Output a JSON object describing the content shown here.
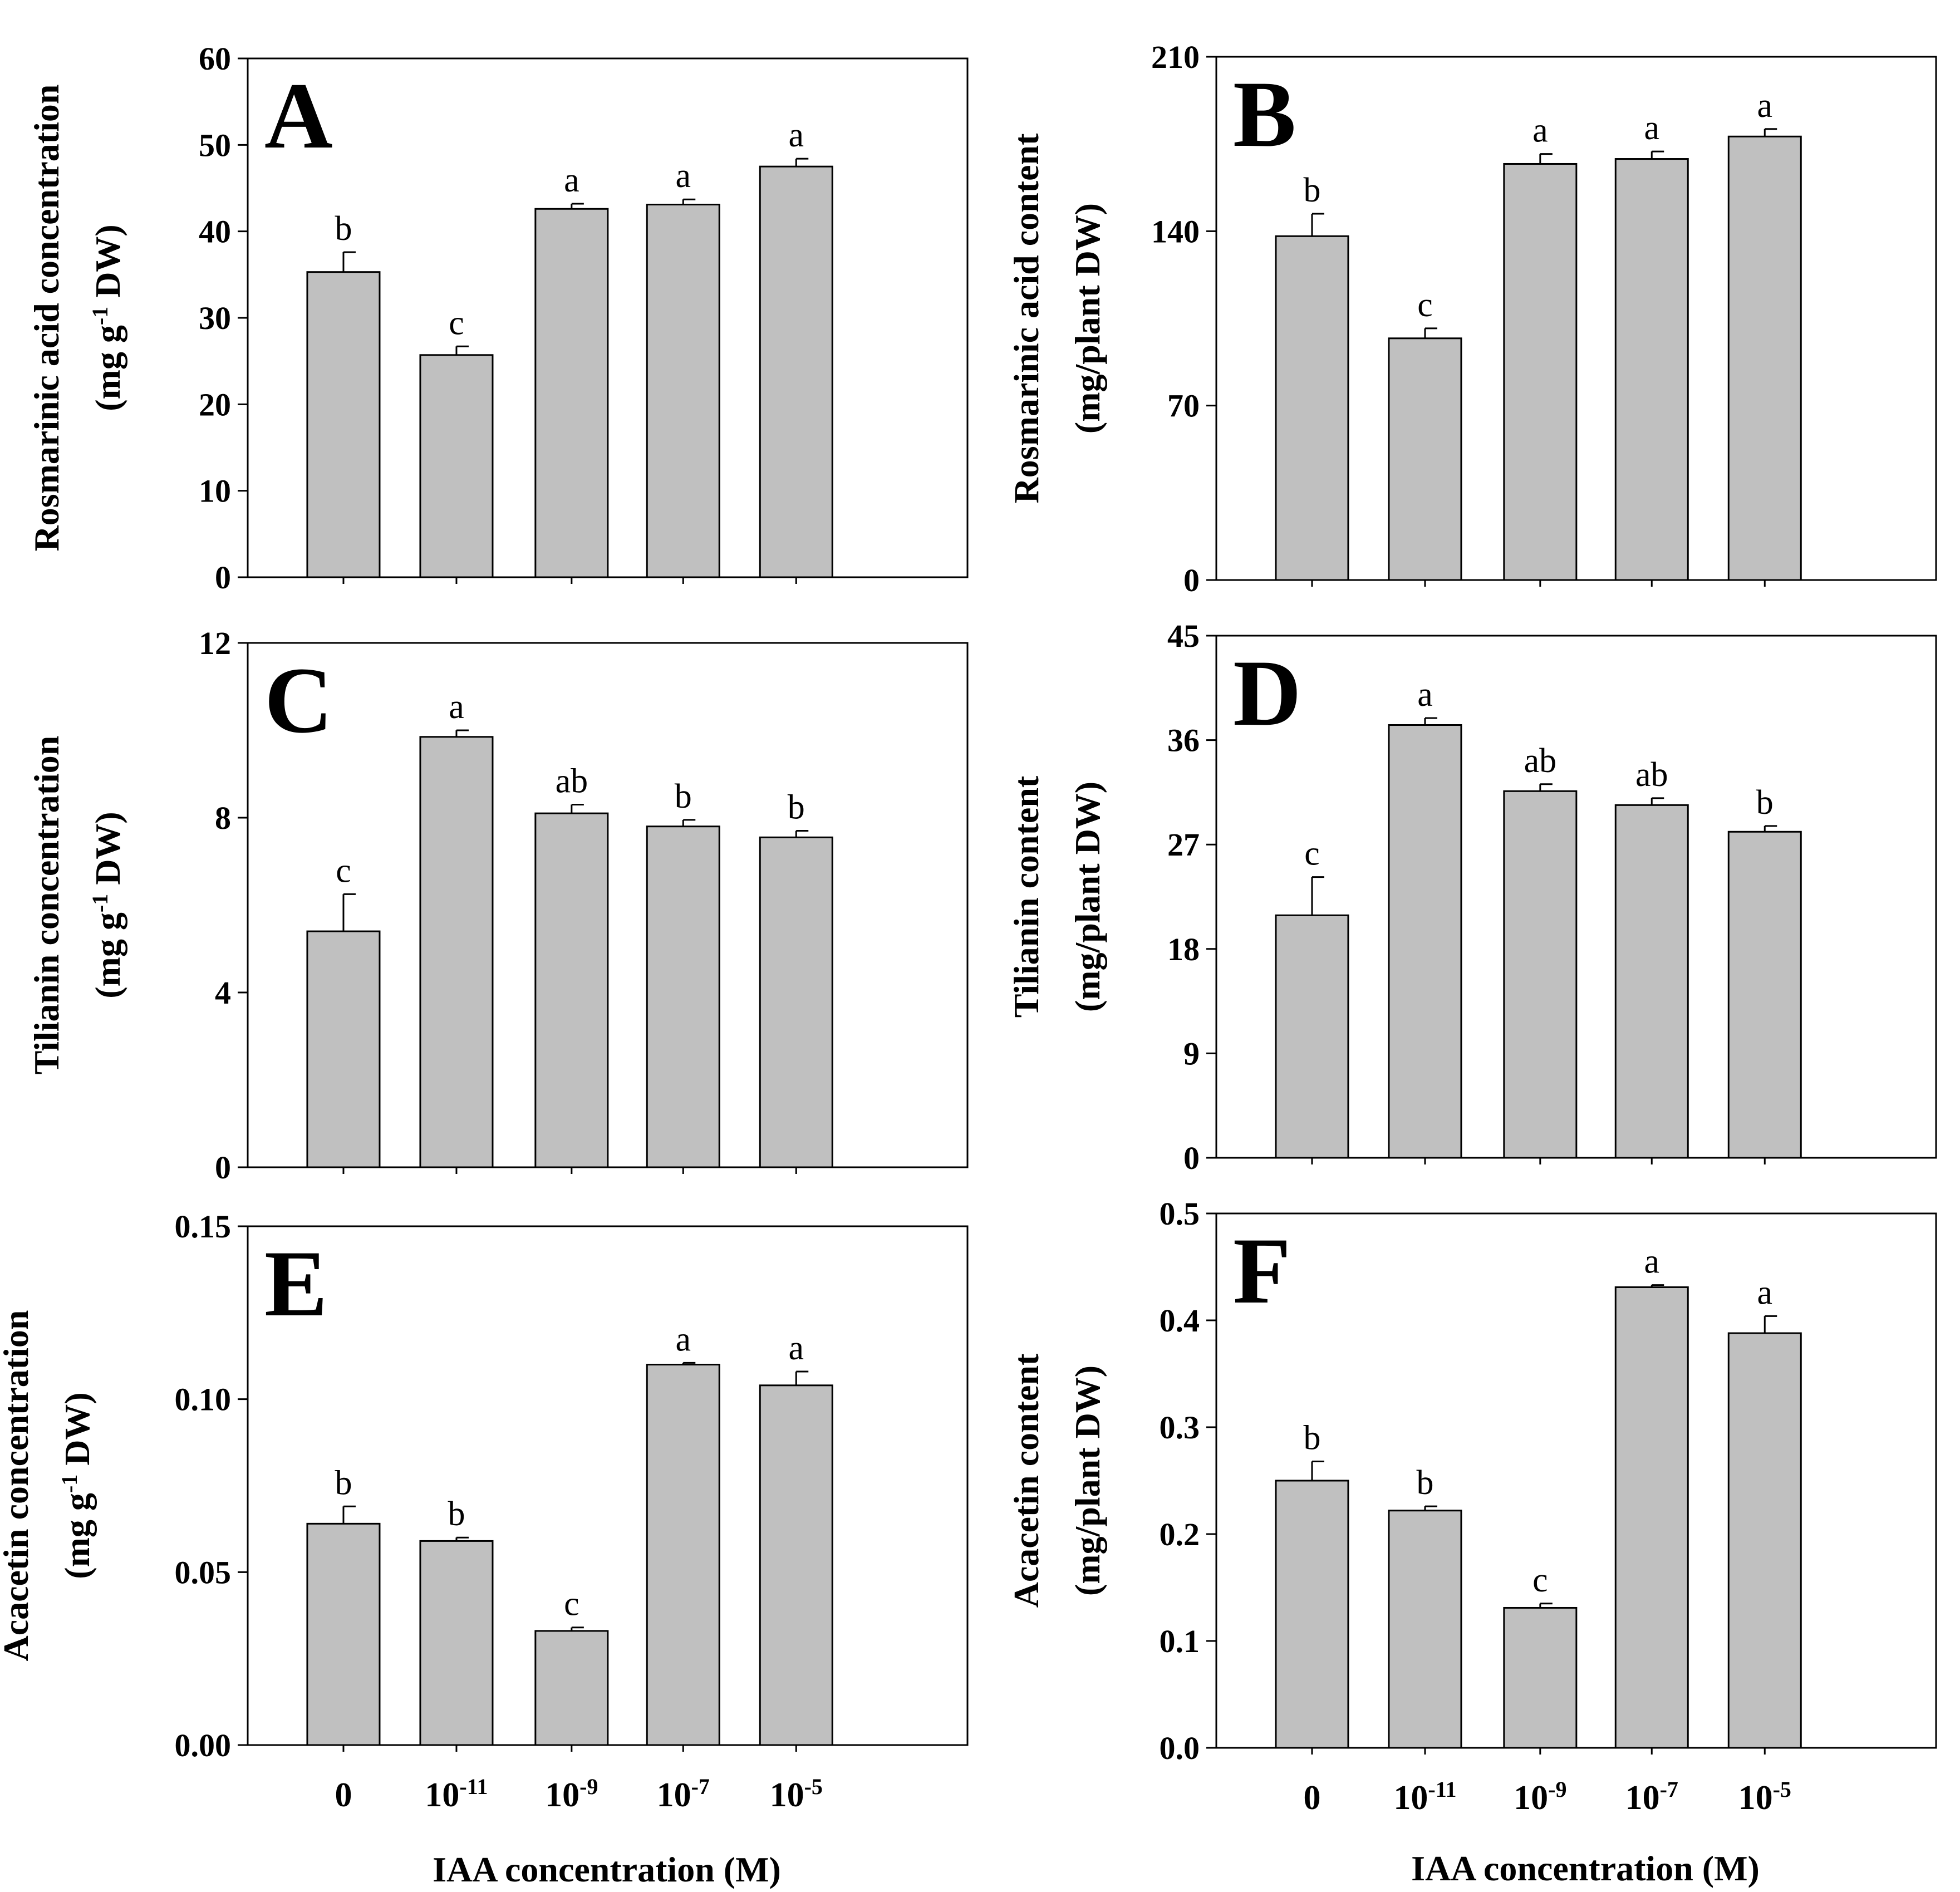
{
  "figure": {
    "xlabel": "IAA concentration (M)",
    "bar_color": "#c0c0c0",
    "categories": [
      {
        "base": "0",
        "exp": ""
      },
      {
        "base": "10",
        "exp": "-11"
      },
      {
        "base": "10",
        "exp": "-9"
      },
      {
        "base": "10",
        "exp": "-7"
      },
      {
        "base": "10",
        "exp": "-5"
      }
    ]
  },
  "chart_data": [
    {
      "type": "bar",
      "panel": "A",
      "ylabel_line1": "Rosmarinic acid concentration",
      "ylabel_line2": {
        "pre": "(mg g",
        "sup": "-1",
        "post": " DW)"
      },
      "ylim": [
        0,
        60
      ],
      "yticks": [
        "0",
        "10",
        "20",
        "30",
        "40",
        "50",
        "60"
      ],
      "categories": [
        "0",
        "10^-11",
        "10^-9",
        "10^-7",
        "10^-5"
      ],
      "values": [
        35.3,
        25.7,
        42.6,
        43.1,
        47.5
      ],
      "errors": [
        2.3,
        1.0,
        0.6,
        0.6,
        0.9
      ],
      "significance": [
        "b",
        "c",
        "a",
        "a",
        "a"
      ]
    },
    {
      "type": "bar",
      "panel": "B",
      "ylabel_line1": "Rosmarinic acid content",
      "ylabel_line2": {
        "pre": "(mg/plant DW)",
        "sup": "",
        "post": ""
      },
      "ylim": [
        0,
        210
      ],
      "yticks": [
        "0",
        "70",
        "140",
        "210"
      ],
      "categories": [
        "0",
        "10^-11",
        "10^-9",
        "10^-7",
        "10^-5"
      ],
      "values": [
        138,
        97,
        167,
        169,
        178
      ],
      "errors": [
        9,
        4,
        4,
        3,
        3
      ],
      "significance": [
        "b",
        "c",
        "a",
        "a",
        "a"
      ]
    },
    {
      "type": "bar",
      "panel": "C",
      "ylabel_line1": "Tilianin concentration",
      "ylabel_line2": {
        "pre": "(mg g",
        "sup": "-1",
        "post": " DW)"
      },
      "ylim": [
        0,
        12
      ],
      "yticks": [
        "0",
        "4",
        "8",
        "12"
      ],
      "categories": [
        "0",
        "10^-11",
        "10^-9",
        "10^-7",
        "10^-5"
      ],
      "values": [
        5.4,
        9.85,
        8.1,
        7.8,
        7.55
      ],
      "errors": [
        0.85,
        0.15,
        0.2,
        0.15,
        0.15
      ],
      "significance": [
        "c",
        "a",
        "ab",
        "b",
        "b"
      ]
    },
    {
      "type": "bar",
      "panel": "D",
      "ylabel_line1": "Tilianin content",
      "ylabel_line2": {
        "pre": "(mg/plant DW)",
        "sup": "",
        "post": ""
      },
      "ylim": [
        0,
        45
      ],
      "yticks": [
        "0",
        "9",
        "18",
        "27",
        "36",
        "45"
      ],
      "categories": [
        "0",
        "10^-11",
        "10^-9",
        "10^-7",
        "10^-5"
      ],
      "values": [
        20.9,
        37.3,
        31.6,
        30.4,
        28.1
      ],
      "errors": [
        3.3,
        0.6,
        0.6,
        0.6,
        0.5
      ],
      "significance": [
        "c",
        "a",
        "ab",
        "ab",
        "b"
      ]
    },
    {
      "type": "bar",
      "panel": "E",
      "ylabel_line1": "Acacetin concentration",
      "ylabel_line2": {
        "pre": "(mg g",
        "sup": "-1",
        "post": " DW)"
      },
      "ylim": [
        0,
        0.15
      ],
      "yticks": [
        "0.00",
        "0.05",
        "0.10",
        "0.15"
      ],
      "categories": [
        "0",
        "10^-11",
        "10^-9",
        "10^-7",
        "10^-5"
      ],
      "values": [
        0.064,
        0.059,
        0.033,
        0.11,
        0.104
      ],
      "errors": [
        0.005,
        0.001,
        0.001,
        0.0005,
        0.004
      ],
      "significance": [
        "b",
        "b",
        "c",
        "a",
        "a"
      ]
    },
    {
      "type": "bar",
      "panel": "F",
      "ylabel_line1": "Acacetin content",
      "ylabel_line2": {
        "pre": "(mg/plant DW)",
        "sup": "",
        "post": ""
      },
      "ylim": [
        0,
        0.5
      ],
      "yticks": [
        "0.0",
        "0.1",
        "0.2",
        "0.3",
        "0.4",
        "0.5"
      ],
      "categories": [
        "0",
        "10^-11",
        "10^-9",
        "10^-7",
        "10^-5"
      ],
      "values": [
        0.25,
        0.222,
        0.131,
        0.431,
        0.388
      ],
      "errors": [
        0.018,
        0.004,
        0.004,
        0.002,
        0.016
      ],
      "significance": [
        "b",
        "b",
        "c",
        "a",
        "a"
      ]
    }
  ]
}
